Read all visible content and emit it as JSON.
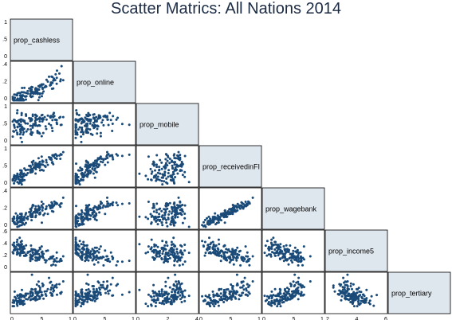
{
  "chart_data": {
    "type": "scatter_matrix",
    "title": "Scatter Matrics: All Nations 2014",
    "variables": [
      "prop_cashless",
      "prop_online",
      "prop_mobile",
      "prop_receivedinFI",
      "prop_wagebank",
      "prop_income5",
      "prop_tertiary"
    ],
    "y_axis_ticks": [
      {
        "row": 0,
        "ticks": [
          "1",
          ".5",
          "0"
        ]
      },
      {
        "row": 1,
        "ticks": [
          ".4",
          ".2",
          "0"
        ]
      },
      {
        "row": 2,
        "ticks": [
          "1",
          ".5",
          "0"
        ]
      },
      {
        "row": 3,
        "ticks": [
          "1",
          ".5",
          "0"
        ]
      },
      {
        "row": 4,
        "ticks": [
          ".4",
          ".2",
          "0"
        ]
      },
      {
        "row": 5,
        "ticks": [
          "0",
          ".2",
          ".4",
          ".6"
        ]
      }
    ],
    "x_axis_ticks": [
      {
        "col": 0,
        "ticks": [
          "0",
          ".5",
          "1"
        ]
      },
      {
        "col": 1,
        "ticks": [
          "0",
          ".5",
          "1"
        ]
      },
      {
        "col": 2,
        "ticks": [
          "0",
          ".2",
          ".4"
        ]
      },
      {
        "col": 3,
        "ticks": [
          "0",
          ".5",
          "1"
        ]
      },
      {
        "col": 4,
        "ticks": [
          "0",
          ".5",
          "1"
        ]
      },
      {
        "col": 5,
        "ticks": [
          ".2",
          ".4",
          ".6"
        ]
      }
    ],
    "ranges": [
      [
        0,
        1
      ],
      [
        0,
        0.45
      ],
      [
        0,
        0.4
      ],
      [
        0,
        1
      ],
      [
        0,
        1
      ],
      [
        0.1,
        0.6
      ],
      [
        0,
        0.6
      ]
    ],
    "n_points": 140,
    "grid": false,
    "legend": "none"
  }
}
